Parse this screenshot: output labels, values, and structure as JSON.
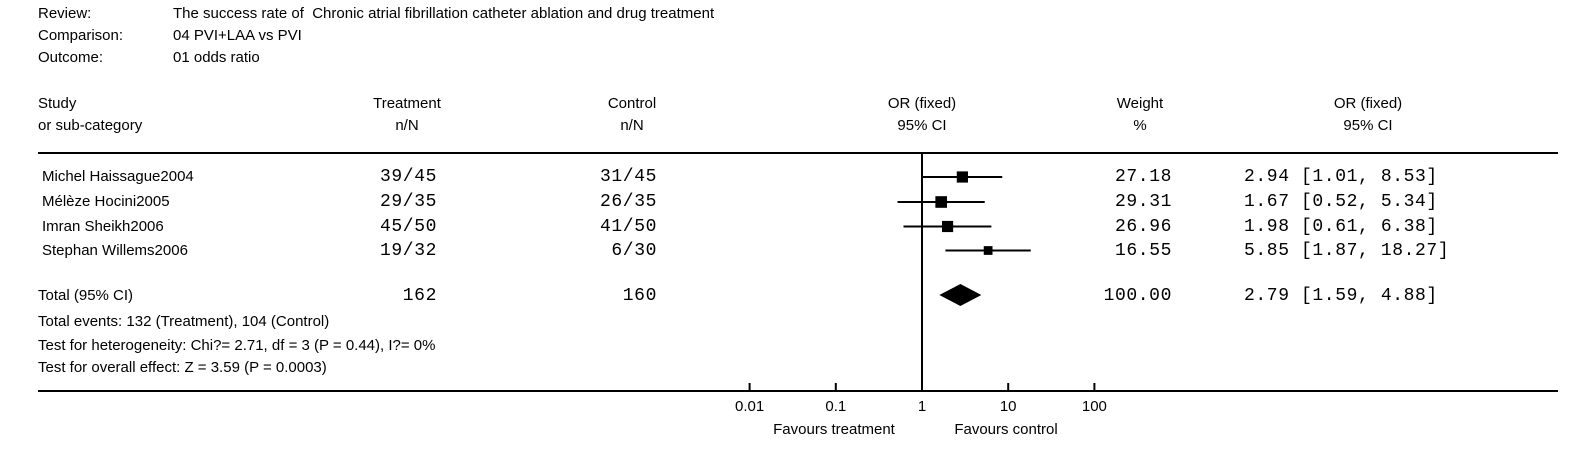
{
  "meta": {
    "review_label": "Review:",
    "review_value": "The success rate of  Chronic atrial fibrillation catheter ablation and drug treatment",
    "comparison_label": "Comparison:",
    "comparison_value": "04 PVI+LAA vs PVI",
    "outcome_label": "Outcome:",
    "outcome_value": "01 odds ratio"
  },
  "columns": {
    "study_line1": "Study",
    "study_line2": "or sub-category",
    "treatment_line1": "Treatment",
    "treatment_line2": "n/N",
    "control_line1": "Control",
    "control_line2": "n/N",
    "plot_line1": "OR (fixed)",
    "plot_line2": "95% CI",
    "weight_line1": "Weight",
    "weight_line2": "%",
    "or_line1": "OR (fixed)",
    "or_line2": "95% CI"
  },
  "studies": [
    {
      "name": "Michel Haissague2004",
      "treatment": "39/45",
      "control": "31/45",
      "weight": "27.18",
      "or_ci": "2.94 [1.01, 8.53]"
    },
    {
      "name": "Mélèze Hocini2005",
      "treatment": "29/35",
      "control": "26/35",
      "weight": "29.31",
      "or_ci": "1.67 [0.52, 5.34]"
    },
    {
      "name": "Imran Sheikh2006",
      "treatment": "45/50",
      "control": "41/50",
      "weight": "26.96",
      "or_ci": "1.98 [0.61, 6.38]"
    },
    {
      "name": "Stephan Willems2006",
      "treatment": "19/32",
      "control": "6/30",
      "weight": "16.55",
      "or_ci": "5.85 [1.87, 18.27]"
    }
  ],
  "total": {
    "label": "Total (95% CI)",
    "treatment": "162",
    "control": "160",
    "weight": "100.00",
    "or_ci": "2.79 [1.59, 4.88]"
  },
  "footers": {
    "total_events": "Total events: 132 (Treatment), 104 (Control)",
    "heterogeneity": "Test for heterogeneity: Chi?= 2.71, df = 3 (P = 0.44), I?= 0%",
    "overall_effect": "Test for overall effect: Z = 3.59 (P = 0.0003)"
  },
  "chart_data": {
    "type": "scatter",
    "subtype": "forest-plot",
    "x_scale": "log",
    "x_ticks": [
      0.01,
      0.1,
      1,
      10,
      100
    ],
    "x_tick_labels": [
      "0.01",
      "0.1",
      "1",
      "10",
      "100"
    ],
    "null_line_value": 1,
    "favours_left": "Favours treatment",
    "favours_right": "Favours control",
    "effect_label": "OR (fixed) 95% CI",
    "series": [
      {
        "study": "Michel Haissague2004",
        "or": 2.94,
        "ci_low": 1.01,
        "ci_high": 8.53,
        "weight_pct": 27.18
      },
      {
        "study": "Mélèze Hocini2005",
        "or": 1.67,
        "ci_low": 0.52,
        "ci_high": 5.34,
        "weight_pct": 29.31
      },
      {
        "study": "Imran Sheikh2006",
        "or": 1.98,
        "ci_low": 0.61,
        "ci_high": 6.38,
        "weight_pct": 26.96
      },
      {
        "study": "Stephan Willems2006",
        "or": 5.85,
        "ci_low": 1.87,
        "ci_high": 18.27,
        "weight_pct": 16.55
      }
    ],
    "summary": {
      "label": "Total (95% CI)",
      "or": 2.79,
      "ci_low": 1.59,
      "ci_high": 4.88,
      "weight_pct": 100.0
    }
  },
  "colors": {
    "text": "#000000",
    "marker": "#000000",
    "background": "#ffffff"
  }
}
